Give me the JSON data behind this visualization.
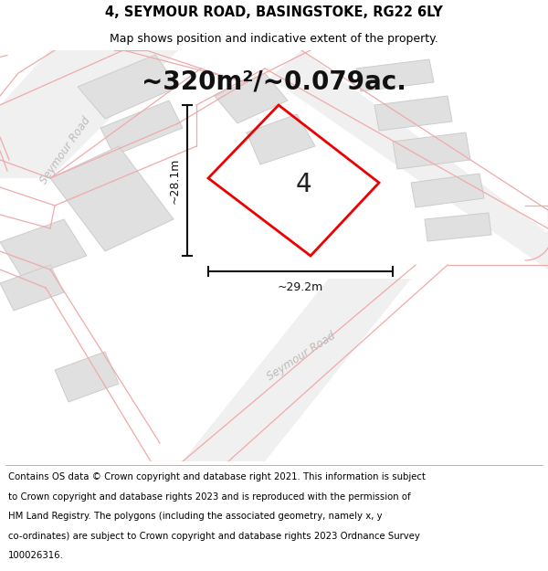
{
  "title": "4, SEYMOUR ROAD, BASINGSTOKE, RG22 6LY",
  "subtitle": "Map shows position and indicative extent of the property.",
  "area_text": "~320m²/~0.079ac.",
  "plot_number": "4",
  "dim_width": "~29.2m",
  "dim_height": "~28.1m",
  "footer_lines": [
    "Contains OS data © Crown copyright and database right 2021. This information is subject",
    "to Crown copyright and database rights 2023 and is reproduced with the permission of",
    "HM Land Registry. The polygons (including the associated geometry, namely x, y",
    "co-ordinates) are subject to Crown copyright and database rights 2023 Ordnance Survey",
    "100026316."
  ],
  "bg_color": "#ffffff",
  "map_bg": "#f7f7f7",
  "road_fill": "#f0f0f0",
  "road_line_color": "#f0aaaa",
  "building_fill": "#e0e0e0",
  "building_edge": "#cccccc",
  "plot_color": "#ee0000",
  "plot_fill": "none",
  "road_label_color": "#bbbbbb",
  "dim_color": "#111111",
  "title_fontsize": 10.5,
  "subtitle_fontsize": 9,
  "area_fontsize": 20,
  "plot_num_fontsize": 20,
  "footer_fontsize": 7.3,
  "dim_fontsize": 9,
  "road_label_fontsize": 8.5
}
